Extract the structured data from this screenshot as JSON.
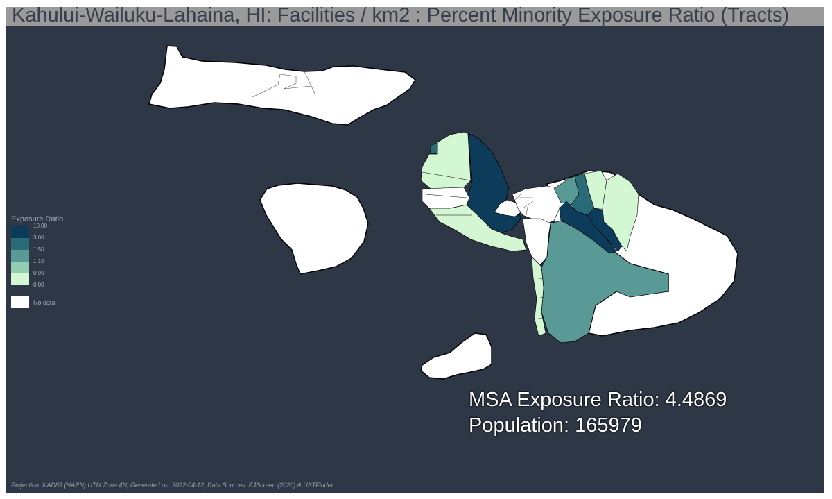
{
  "title": "Kahului-Wailuku-Lahaina, HI: Facilities / km2 : Percent Minority Exposure Ratio (Tracts)",
  "legend": {
    "title": "Exposure Ratio",
    "ticks": [
      "10.00",
      "3.00",
      "1.50",
      "1.10",
      "0.90",
      "0.00"
    ],
    "colors": [
      "#0d3b5a",
      "#2a6b78",
      "#5a9a96",
      "#93cdb3",
      "#d3f7d3"
    ],
    "no_data_label": "No data",
    "no_data_color": "#ffffff"
  },
  "stats": {
    "msa_ratio": "MSA Exposure Ratio: 4.4869",
    "population": "Population: 165979"
  },
  "footer": "Projection: NAD83 (HARN) UTM Zone 4N, Generated on: 2022-04-12, Data Sources: EJScreen (2020) & USTFinder",
  "map_colors": {
    "background": "#2d3746",
    "land_no_data": "#ffffff",
    "coastline": "#000000"
  }
}
